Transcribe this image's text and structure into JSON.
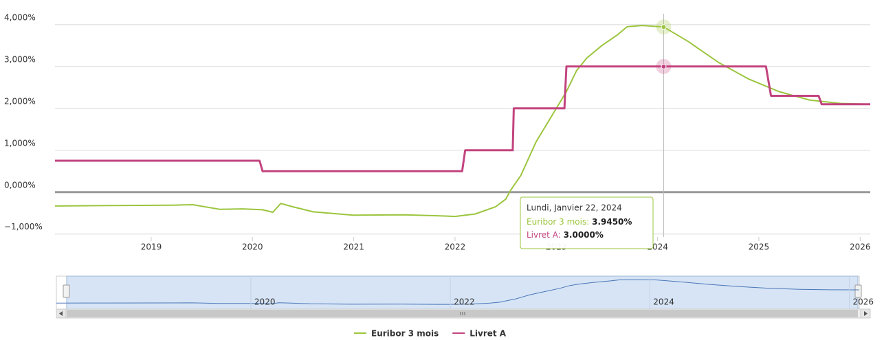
{
  "chart_data": {
    "type": "line",
    "xlim": [
      2018.05,
      2026.1
    ],
    "xticks": [
      2019,
      2020,
      2021,
      2022,
      2023,
      2024,
      2025,
      2026
    ],
    "ylim": [
      -1.07,
      4.26
    ],
    "yticks": [
      {
        "value": -1,
        "label": "−1,000%"
      },
      {
        "value": 0,
        "label": "0,000%"
      },
      {
        "value": 1,
        "label": "1,000%"
      },
      {
        "value": 2,
        "label": "2,000%"
      },
      {
        "value": 3,
        "label": "3,000%"
      },
      {
        "value": 4,
        "label": "4,000%"
      }
    ],
    "grid": true,
    "zero_line": true,
    "legend": "bottom",
    "series": [
      {
        "name": "Euribor 3 mois",
        "color": "#9bc53d",
        "x": [
          2018.05,
          2018.6,
          2019.2,
          2019.41,
          2019.68,
          2019.9,
          2020.1,
          2020.2,
          2020.28,
          2020.4,
          2020.6,
          2021.0,
          2021.5,
          2021.9,
          2022.0,
          2022.2,
          2022.4,
          2022.5,
          2022.55,
          2022.65,
          2022.8,
          2022.95,
          2023.1,
          2023.2,
          2023.3,
          2023.45,
          2023.6,
          2023.7,
          2023.85,
          2024.06,
          2024.3,
          2024.6,
          2024.9,
          2025.2,
          2025.5,
          2025.8,
          2026.1
        ],
        "values": [
          -0.33,
          -0.32,
          -0.31,
          -0.3,
          -0.41,
          -0.4,
          -0.42,
          -0.48,
          -0.27,
          -0.35,
          -0.47,
          -0.55,
          -0.54,
          -0.57,
          -0.58,
          -0.52,
          -0.35,
          -0.17,
          0.05,
          0.4,
          1.2,
          1.8,
          2.4,
          2.9,
          3.2,
          3.5,
          3.75,
          3.95,
          3.98,
          3.945,
          3.6,
          3.1,
          2.7,
          2.4,
          2.2,
          2.12,
          2.1
        ]
      },
      {
        "name": "Livret A",
        "color": "#c2447f",
        "x": [
          2018.05,
          2020.07,
          2020.1,
          2022.07,
          2022.1,
          2022.57,
          2022.58,
          2023.08,
          2023.1,
          2025.07,
          2025.12,
          2025.59,
          2025.62,
          2026.1
        ],
        "values": [
          0.75,
          0.75,
          0.5,
          0.5,
          1.0,
          1.0,
          2.0,
          2.0,
          3.0,
          3.0,
          2.3,
          2.3,
          2.1,
          2.1
        ]
      }
    ],
    "navigator_xticks": [
      2020,
      2022,
      2024,
      2026
    ],
    "tooltip": {
      "x": 2024.06,
      "date": "Lundi, Janvier 22, 2024",
      "items": [
        {
          "label": "Euribor 3 mois",
          "value": 3.945,
          "value_label": "3.9450%"
        },
        {
          "label": "Livret A",
          "value": 3.0,
          "value_label": "3.0000%"
        }
      ]
    }
  }
}
